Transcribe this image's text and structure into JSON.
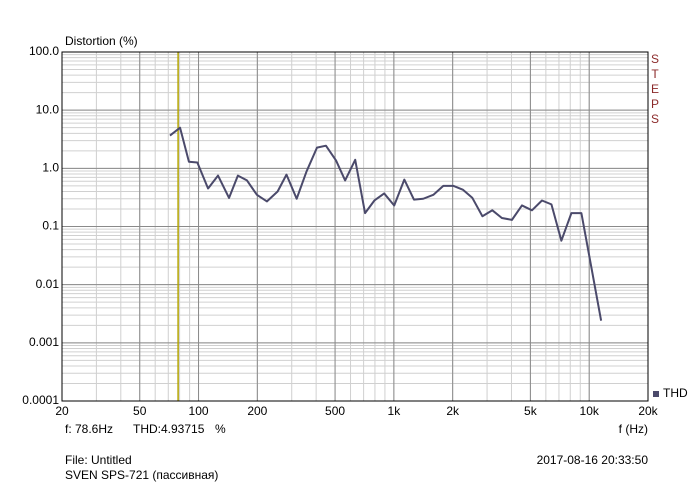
{
  "chart_data": {
    "type": "line",
    "title": "Distortion (%)",
    "x_label": "f (Hz)",
    "side_label": "STEPS",
    "log_x": true,
    "log_y": true,
    "grid": true,
    "minor_grid": true,
    "legend": "bottom-right",
    "xlim": [
      20,
      20000
    ],
    "ylim": [
      0.0001,
      100
    ],
    "xticks": [
      20,
      50,
      100,
      200,
      500,
      {
        "value": 1000,
        "label": "1k"
      },
      {
        "value": 2000,
        "label": "2k"
      },
      {
        "value": 5000,
        "label": "5k"
      },
      {
        "value": 10000,
        "label": "10k"
      },
      {
        "value": 20000,
        "label": "20k"
      }
    ],
    "yticks": [
      {
        "value": 100,
        "label": "100.0"
      },
      {
        "value": 10,
        "label": "10.0"
      },
      {
        "value": 1,
        "label": "1.0"
      },
      0.1,
      0.01,
      0.001,
      0.0001
    ],
    "x": [
      71.4,
      80.4,
      89.3,
      98.6,
      111.9,
      125.8,
      143.3,
      159,
      177,
      199,
      224,
      254,
      282,
      318,
      357,
      404,
      449,
      506,
      563,
      634,
      712,
      795,
      892,
      1004,
      1131,
      1267,
      1414,
      1592,
      1791,
      2014,
      2254,
      2523,
      2840,
      3193,
      3572,
      4022,
      4526,
      5093,
      5730,
      6407,
      7203,
      8106,
      9118,
      10260,
      11510
    ],
    "series": [
      {
        "name": "THD",
        "color": "#4b4a6b",
        "values": [
          3.66,
          5.0,
          1.3,
          1.26,
          0.45,
          0.75,
          0.31,
          0.75,
          0.62,
          0.35,
          0.27,
          0.4,
          0.78,
          0.3,
          0.88,
          2.27,
          2.45,
          1.36,
          0.62,
          1.4,
          0.17,
          0.28,
          0.37,
          0.23,
          0.64,
          0.29,
          0.3,
          0.35,
          0.5,
          0.5,
          0.43,
          0.31,
          0.15,
          0.19,
          0.14,
          0.13,
          0.23,
          0.19,
          0.28,
          0.24,
          0.057,
          0.17,
          0.17,
          0.0198,
          0.0024
        ]
      }
    ],
    "cursor_x": 78.6,
    "cursor_color": "#b3a400",
    "readout_f": "f: 78.6Hz",
    "readout_value": "THD:4.93715",
    "readout_unit": "%",
    "file_label": "File: Untitled",
    "device_label": "SVEN SPS-721 (пассивная)",
    "timestamp": "2017-08-16 20:33:50"
  }
}
